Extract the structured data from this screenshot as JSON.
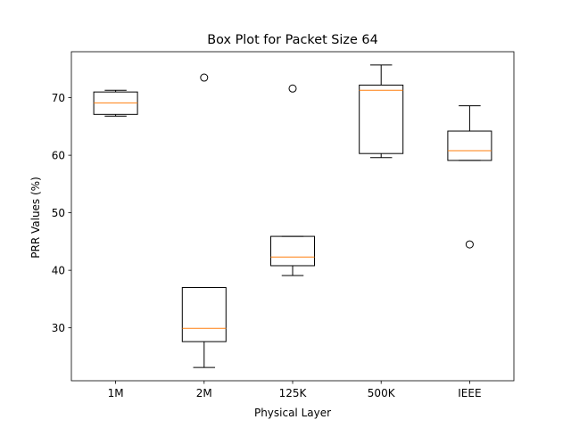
{
  "chart_data": {
    "type": "box",
    "title": "Box Plot for Packet Size 64",
    "xlabel": "Physical Layer",
    "ylabel": "PRR Values (%)",
    "ylim": [
      20.8,
      78.0
    ],
    "yticks": [
      30,
      40,
      50,
      60,
      70
    ],
    "grid": false,
    "colors": {
      "box": "#000000",
      "median": "#ff7f0e",
      "flier": "#000000"
    },
    "categories": [
      "1M",
      "2M",
      "125K",
      "500K",
      "IEEE"
    ],
    "boxes": [
      {
        "label": "1M",
        "whisker_low": 66.8,
        "q1": 67.1,
        "median": 69.1,
        "q3": 71.0,
        "whisker_high": 71.3,
        "fliers": []
      },
      {
        "label": "2M",
        "whisker_low": 23.1,
        "q1": 27.6,
        "median": 29.9,
        "q3": 37.0,
        "whisker_high": 37.0,
        "fliers": [
          73.5
        ]
      },
      {
        "label": "125K",
        "whisker_low": 39.1,
        "q1": 40.8,
        "median": 42.3,
        "q3": 45.9,
        "whisker_high": 45.9,
        "fliers": [
          71.6
        ]
      },
      {
        "label": "500K",
        "whisker_low": 59.6,
        "q1": 60.3,
        "median": 71.3,
        "q3": 72.2,
        "whisker_high": 75.7,
        "fliers": []
      },
      {
        "label": "IEEE",
        "whisker_low": 59.1,
        "q1": 59.1,
        "median": 60.8,
        "q3": 64.2,
        "whisker_high": 68.6,
        "fliers": [
          44.5
        ]
      }
    ]
  }
}
